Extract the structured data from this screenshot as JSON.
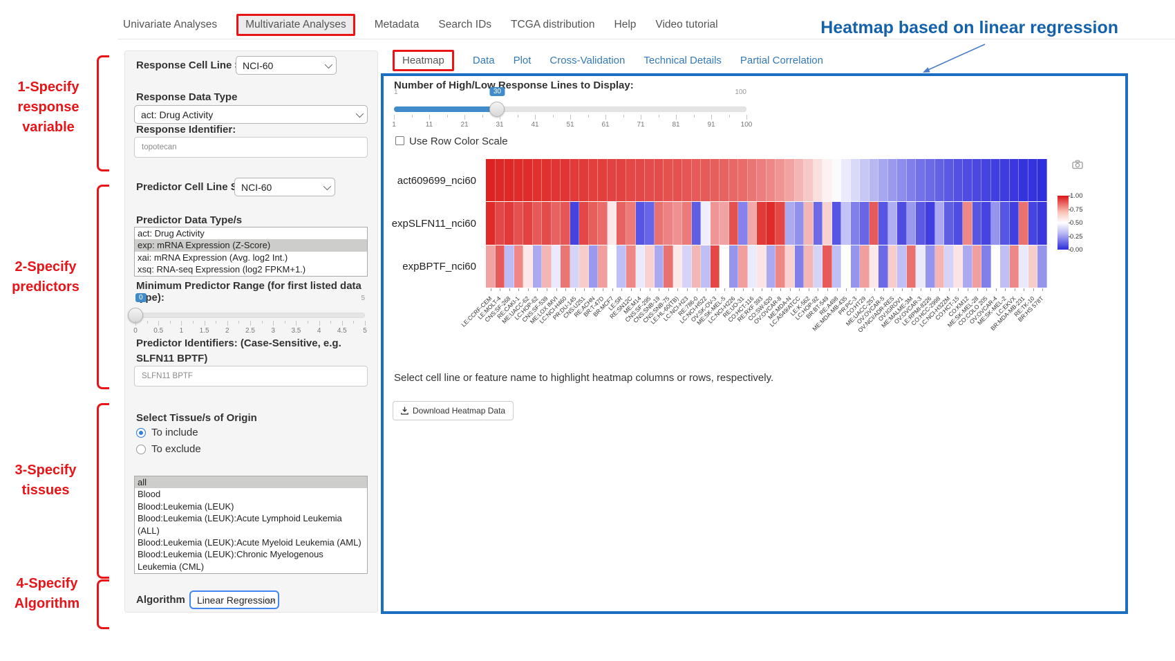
{
  "colors": {
    "accent_red": "#e91418",
    "heading_blue": "#1562aa",
    "panel_border_blue": "#1c6fc0",
    "link_blue": "#337ab7",
    "slider_blue": "#428bca",
    "heatmap_high": "#dc1a18",
    "heatmap_low": "#2d2adc"
  },
  "icons": {
    "camera": "camera-icon",
    "download": "download-icon",
    "select_chevron": "chevron-down-icon",
    "annotation_arrow": "arrow-icon"
  },
  "nav": {
    "items": [
      {
        "label": "Univariate Analyses",
        "highlighted": false
      },
      {
        "label": "Multivariate Analyses",
        "highlighted": true
      },
      {
        "label": "Metadata",
        "highlighted": false
      },
      {
        "label": "Search IDs",
        "highlighted": false
      },
      {
        "label": "TCGA distribution",
        "highlighted": false
      },
      {
        "label": "Help",
        "highlighted": false
      },
      {
        "label": "Video tutorial",
        "highlighted": false
      }
    ]
  },
  "annotation": {
    "heading": "Heatmap based on linear regression",
    "steps": [
      {
        "lines": [
          "1-Specify",
          "response",
          "variable"
        ]
      },
      {
        "lines": [
          "2-Specify",
          "predictors"
        ]
      },
      {
        "lines": [
          "3-Specify",
          "tissues"
        ]
      },
      {
        "lines": [
          "4-Specify",
          "Algorithm"
        ]
      }
    ]
  },
  "form": {
    "response_cell_line_set": {
      "label": "Response Cell Line Set",
      "value": "NCI-60"
    },
    "response_data_type": {
      "label": "Response Data Type",
      "value": "act: Drug Activity"
    },
    "response_identifier": {
      "label": "Response Identifier:",
      "value": "topotecan"
    },
    "predictor_cell_line_set": {
      "label": "Predictor Cell Line Set",
      "value": "NCI-60"
    },
    "predictor_data_types": {
      "label": "Predictor Data Type/s",
      "options": [
        "act: Drug Activity",
        "exp: mRNA Expression (Z-Score)",
        "xai: mRNA Expression (Avg. log2 Int.)",
        "xsq: RNA-seq Expression (log2 FPKM+1.)"
      ],
      "selected_index": 1
    },
    "min_predictor_range": {
      "label": "Minimum Predictor Range (for first listed data type):",
      "min": "0",
      "max": "5",
      "value": "0",
      "ticks": [
        "0",
        "0.5",
        "1",
        "1.5",
        "2",
        "2.5",
        "3",
        "3.5",
        "4",
        "4.5",
        "5"
      ]
    },
    "predictor_identifiers": {
      "label": "Predictor Identifiers: (Case-Sensitive, e.g. SLFN11 BPTF)",
      "value": "SLFN11 BPTF"
    },
    "tissues": {
      "label": "Select Tissue/s of Origin",
      "radio_include": "To include",
      "radio_exclude": "To exclude",
      "include_selected": true,
      "options": [
        "all",
        "Blood",
        "Blood:Leukemia (LEUK)",
        "Blood:Leukemia (LEUK):Acute Lymphoid Leukemia (ALL)",
        "Blood:Leukemia (LEUK):Acute Myeloid Leukemia (AML)",
        "Blood:Leukemia (LEUK):Chronic Myelogenous Leukemia (CML)"
      ],
      "selected_index": 0
    },
    "algorithm": {
      "label": "Algorithm",
      "value": "Linear Regression"
    }
  },
  "main": {
    "tabs": [
      {
        "label": "Heatmap",
        "active": true
      },
      {
        "label": "Data",
        "active": false
      },
      {
        "label": "Plot",
        "active": false
      },
      {
        "label": "Cross-Validation",
        "active": false
      },
      {
        "label": "Technical Details",
        "active": false
      },
      {
        "label": "Partial Correlation",
        "active": false
      }
    ],
    "lines_slider": {
      "label": "Number of High/Low Response Lines to Display:",
      "min": "1",
      "max": "100",
      "value": "30",
      "ticks": [
        "1",
        "11",
        "21",
        "31",
        "41",
        "51",
        "61",
        "71",
        "81",
        "91",
        "100"
      ]
    },
    "row_color_scale": {
      "label": "Use Row Color Scale",
      "checked": false
    },
    "hint": "Select cell line or feature name to highlight heatmap columns or rows, respectively.",
    "download_button": "Download Heatmap Data"
  },
  "chart_data": {
    "type": "heatmap",
    "rows": [
      "act609699_nci60",
      "expSLFN11_nci60",
      "expBPTF_nci60"
    ],
    "columns": [
      "LE:CCRF-CEM",
      "LE:MOLT-4",
      "CNS:SF-268",
      "RE:CAKI-1",
      "ME:UACC-62",
      "LC:HOP-62",
      "CNS:SF-539",
      "ME:LOX IMVI",
      "LC:NCI-H460",
      "PR:DU-145",
      "CNS:U251",
      "RE:ACHN",
      "BR:T-47D",
      "BR:MCF7",
      "LE:SR",
      "RE:SN12C",
      "ME:M14",
      "CNS:SF-295",
      "CNS:SNB-19",
      "CNS:SNB-75",
      "LE:HL-60(TB)",
      "LC:NCI-H23",
      "RE:786-0",
      "LC:NCI-H522",
      "OV:SK-OV-3",
      "ME:SK-MEL-5",
      "LC:NCI-H226",
      "RE:UO-31",
      "CO:HCT-116",
      "RE:RXF 393",
      "CO:SW-620",
      "OV:OVCAR-8",
      "ME:MDA-N",
      "LC:A549/ATCC",
      "LE:K-562",
      "LC:HOP-92",
      "BR:BT-549",
      "RE:A498",
      "ME:MDA-MB-435",
      "PR:PC-3",
      "CO:HT29",
      "ME:UACC-257",
      "OV:OVCAR-5",
      "OV:NCI/ADR-RES",
      "OV:IGROV1",
      "ME:MALME-3M",
      "OV:OVCAR-3",
      "LE:RPMI-8226",
      "CO:HCC-2998",
      "LC:NCI-H322M",
      "CO:HCT-15",
      "CO:KM12",
      "ME:SK-MEL-28",
      "CO:COLO 205",
      "OV:OVCAR-4",
      "ME:SK-MEL-2",
      "LC:EKVX",
      "BR:MDA-MB-231",
      "RE:TK-10",
      "BR:HS 578T"
    ],
    "series": [
      {
        "name": "act609699_nci60",
        "values": [
          0.98,
          0.97,
          0.97,
          0.96,
          0.96,
          0.95,
          0.95,
          0.94,
          0.94,
          0.93,
          0.93,
          0.92,
          0.92,
          0.91,
          0.91,
          0.9,
          0.9,
          0.89,
          0.89,
          0.88,
          0.88,
          0.87,
          0.86,
          0.86,
          0.85,
          0.84,
          0.83,
          0.82,
          0.8,
          0.78,
          0.76,
          0.73,
          0.7,
          0.66,
          0.62,
          0.57,
          0.53,
          0.49,
          0.45,
          0.41,
          0.37,
          0.33,
          0.29,
          0.26,
          0.23,
          0.2,
          0.17,
          0.15,
          0.13,
          0.11,
          0.09,
          0.08,
          0.07,
          0.06,
          0.05,
          0.04,
          0.03,
          0.02,
          0.02,
          0.01
        ]
      },
      {
        "name": "expSLFN11_nci60",
        "values": [
          0.96,
          0.9,
          0.93,
          0.88,
          0.91,
          0.86,
          0.89,
          0.84,
          0.87,
          0.06,
          0.9,
          0.85,
          0.82,
          0.55,
          0.84,
          0.79,
          0.1,
          0.14,
          0.81,
          0.77,
          0.74,
          0.79,
          0.12,
          0.46,
          0.73,
          0.7,
          0.88,
          0.21,
          0.69,
          0.93,
          0.96,
          0.9,
          0.3,
          0.24,
          0.66,
          0.15,
          0.6,
          0.1,
          0.36,
          0.2,
          0.14,
          0.86,
          0.1,
          0.31,
          0.08,
          0.26,
          0.11,
          0.05,
          0.3,
          0.12,
          0.08,
          0.76,
          0.1,
          0.06,
          0.25,
          0.1,
          0.05,
          0.81,
          0.06,
          0.03
        ]
      },
      {
        "name": "expBPTF_nci60",
        "values": [
          0.7,
          0.86,
          0.34,
          0.76,
          0.55,
          0.3,
          0.66,
          0.45,
          0.8,
          0.4,
          0.61,
          0.26,
          0.71,
          0.5,
          0.35,
          0.76,
          0.45,
          0.6,
          0.3,
          0.81,
          0.55,
          0.4,
          0.66,
          0.35,
          0.9,
          0.5,
          0.25,
          0.71,
          0.45,
          0.56,
          0.3,
          0.76,
          0.6,
          0.2,
          0.66,
          0.4,
          0.86,
          0.35,
          0.5,
          0.25,
          0.71,
          0.55,
          0.15,
          0.61,
          0.35,
          0.81,
          0.45,
          0.25,
          0.66,
          0.4,
          0.56,
          0.3,
          0.71,
          0.2,
          0.5,
          0.35,
          0.76,
          0.45,
          0.61,
          0.25
        ]
      }
    ],
    "colorscale": {
      "min": 0,
      "mid": 0.5,
      "max": 1,
      "low_color": "#2d2adc",
      "mid_color": "#ffffff",
      "high_color": "#dc1a18"
    },
    "legend_ticks": [
      "1.00",
      "0.75",
      "0.50",
      "0.25",
      "0.00"
    ]
  }
}
